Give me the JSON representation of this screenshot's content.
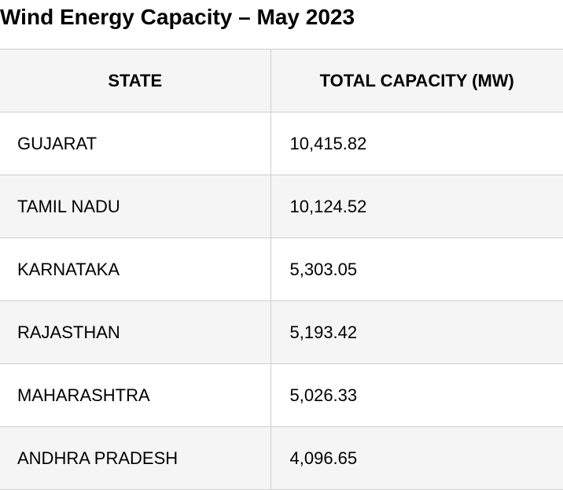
{
  "title": "Wind Energy Capacity – May 2023",
  "table": {
    "headers": [
      "STATE",
      "TOTAL CAPACITY (MW)"
    ],
    "rows": [
      {
        "state": "GUJARAT",
        "capacity": "10,415.82"
      },
      {
        "state": "TAMIL NADU",
        "capacity": "10,124.52"
      },
      {
        "state": "KARNATAKA",
        "capacity": "5,303.05"
      },
      {
        "state": "RAJASTHAN",
        "capacity": "5,193.42"
      },
      {
        "state": "MAHARASHTRA",
        "capacity": "5,026.33"
      },
      {
        "state": "ANDHRA PRADESH",
        "capacity": "4,096.65"
      }
    ]
  }
}
